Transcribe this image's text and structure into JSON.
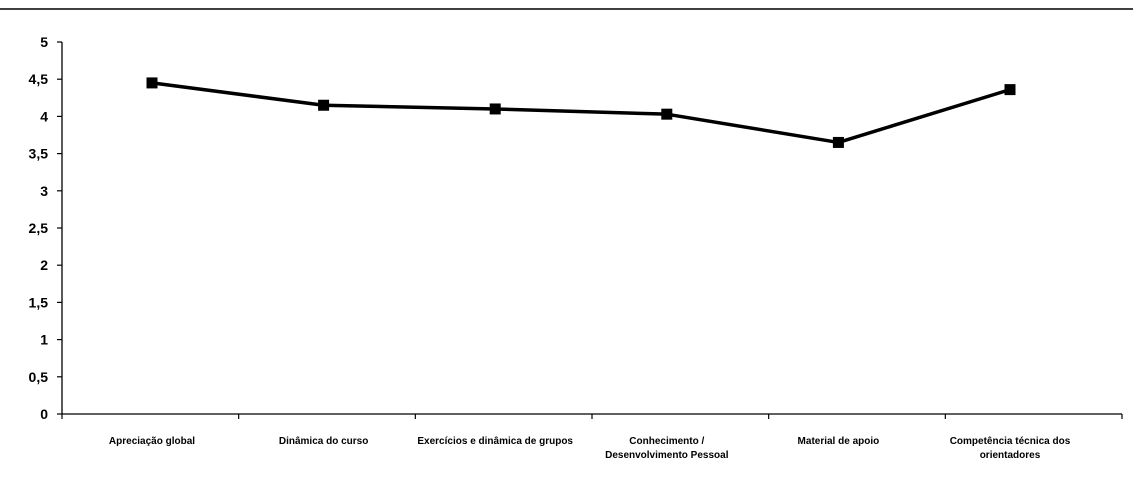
{
  "chart_data": {
    "type": "line",
    "title": "",
    "xlabel": "",
    "ylabel": "",
    "ylim": [
      0,
      5
    ],
    "y_ticks": [
      "0",
      "0,5",
      "1",
      "1,5",
      "2",
      "2,5",
      "3",
      "3,5",
      "4",
      "4,5",
      "5"
    ],
    "categories": [
      [
        "Apreciação global"
      ],
      [
        "Dinâmica do curso"
      ],
      [
        "Exercícios e dinâmica de grupos"
      ],
      [
        "Conhecimento /",
        "Desenvolvimento Pessoal"
      ],
      [
        "Material de apoio"
      ],
      [
        "Competência técnica dos",
        "orientadores"
      ]
    ],
    "series": [
      {
        "values": [
          4.45,
          4.15,
          4.1,
          4.03,
          3.65,
          4.36
        ],
        "color": "#000000",
        "marker": "square"
      }
    ],
    "grid": false,
    "legend": "none"
  }
}
